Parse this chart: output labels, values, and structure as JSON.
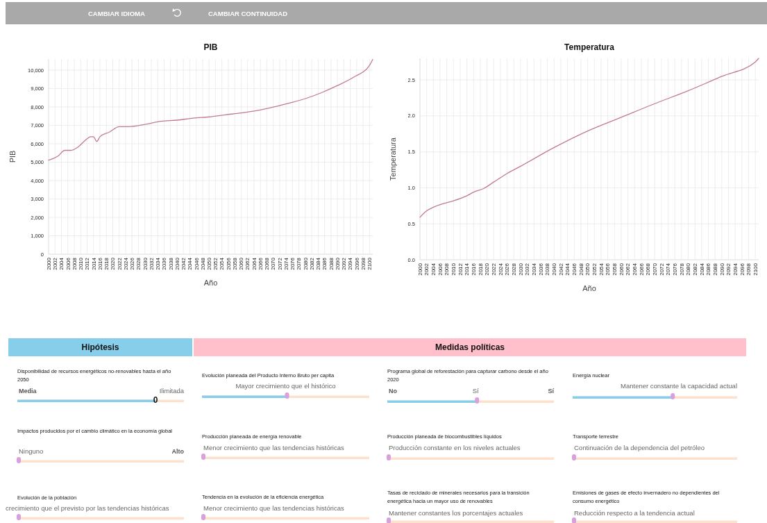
{
  "chart_data": [
    {
      "type": "other",
      "annotations": [
        "CAMBIAR IDIOMA",
        "CAMBIAR CONTINUIDAD"
      ]
    },
    {
      "type": "line",
      "title": "PIB",
      "xlabel": "Año",
      "ylabel": "PIB",
      "color": "#c27a93",
      "grid": true,
      "x": [
        2000,
        2003,
        2005,
        2007,
        2009,
        2012,
        2013,
        2014,
        2015,
        2016,
        2019,
        2022,
        2025,
        2030,
        2035,
        2040,
        2045,
        2050,
        2055,
        2060,
        2065,
        2070,
        2075,
        2080,
        2085,
        2090,
        2095,
        2100,
        2101
      ],
      "values": [
        5110,
        5340,
        5640,
        5640,
        5800,
        6270,
        6380,
        6380,
        6120,
        6380,
        6640,
        6930,
        6930,
        7050,
        7220,
        7280,
        7390,
        7460,
        7570,
        7670,
        7800,
        7990,
        8210,
        8450,
        8770,
        9160,
        9610,
        10260,
        10580
      ],
      "xlim": [
        2000,
        2101
      ],
      "xticks": [
        2000,
        2002,
        2004,
        2006,
        2008,
        2010,
        2012,
        2014,
        2016,
        2018,
        2020,
        2022,
        2024,
        2026,
        2028,
        2030,
        2032,
        2034,
        2036,
        2038,
        2040,
        2042,
        2044,
        2046,
        2048,
        2050,
        2052,
        2054,
        2056,
        2058,
        2060,
        2062,
        2064,
        2066,
        2068,
        2070,
        2072,
        2074,
        2076,
        2078,
        2080,
        2082,
        2084,
        2086,
        2088,
        2090,
        2092,
        2094,
        2096,
        2098,
        2100
      ],
      "ylim": [
        0,
        10600
      ],
      "yticks": [
        0,
        {
          "value": 1000,
          "label": "1,000"
        },
        {
          "value": 2000,
          "label": "2,000"
        },
        {
          "value": 3000,
          "label": "3,000"
        },
        {
          "value": 4000,
          "label": "4,000"
        },
        {
          "value": 5000,
          "label": "5,000"
        },
        {
          "value": 6000,
          "label": "6,000"
        },
        {
          "value": 7000,
          "label": "7,000"
        },
        {
          "value": 8000,
          "label": "8,000"
        },
        {
          "value": 9000,
          "label": "9,000"
        },
        {
          "value": 10000,
          "label": "10,000"
        }
      ]
    },
    {
      "type": "line",
      "title": "Temperatura",
      "xlabel": "Año",
      "ylabel": "Temperatura",
      "color": "#c27a93",
      "grid": true,
      "x": [
        2000,
        2002,
        2004,
        2007,
        2010,
        2014,
        2016,
        2019,
        2022,
        2026,
        2030,
        2040,
        2050,
        2060,
        2070,
        2080,
        2090,
        2100,
        2101
      ],
      "values": [
        0.59,
        0.68,
        0.73,
        0.78,
        0.82,
        0.89,
        0.94,
        0.99,
        1.08,
        1.2,
        1.3,
        1.56,
        1.79,
        1.98,
        2.17,
        2.35,
        2.55,
        2.75,
        2.8
      ],
      "xlim": [
        2000,
        2101
      ],
      "xticks": [
        2000,
        2002,
        2004,
        2006,
        2008,
        2010,
        2012,
        2014,
        2016,
        2018,
        2020,
        2022,
        2024,
        2026,
        2028,
        2030,
        2032,
        2034,
        2036,
        2038,
        2040,
        2042,
        2044,
        2046,
        2048,
        2050,
        2052,
        2054,
        2056,
        2058,
        2060,
        2062,
        2064,
        2066,
        2068,
        2070,
        2072,
        2074,
        2076,
        2078,
        2080,
        2082,
        2084,
        2086,
        2088,
        2090,
        2092,
        2094,
        2096,
        2098,
        2100
      ],
      "ylim": [
        0,
        2.8
      ],
      "yticks": [
        {
          "value": 0,
          "label": "0.0"
        },
        {
          "value": 0.5,
          "label": "0.5"
        },
        {
          "value": 1,
          "label": "1.0"
        },
        {
          "value": 1.5,
          "label": "1.5"
        },
        {
          "value": 2,
          "label": "2.0"
        },
        {
          "value": 2.5,
          "label": "2.5"
        }
      ]
    },
    {
      "type": "other",
      "title": "Hipótesis",
      "annotations": [
        "Disponibilidad de recursos energéticos no-renovables hasta el año 2050",
        "Media",
        "Ilimitada",
        "0",
        "Impactos producidos por el cambio climático en la economía global",
        "Ninguno",
        "Alto",
        "Evolución de la población",
        "crecimiento que el previsto por las tendencias históricas"
      ]
    },
    {
      "type": "other",
      "title": "Medidas políticas",
      "annotations": [
        "Evolución planeada del Producto Interno Bruto per capita",
        "Mayor crecimiento que el histórico",
        "Programa global de reforestación para capturar carbono desde el año 2020",
        "No",
        "Sí",
        "Sí",
        "Energía nuclear",
        "Mantener constante la capacidad actual",
        "Producción planeada de energía renovable",
        "Menor crecimiento que las tendencias históricas",
        "Producción planeada de biocombustibles líquidos",
        "Producción constante en los niveles actuales",
        "Transporte terrestre",
        "Continuación de la dependencia del petróleo",
        "Tendencia en la evolución de la eficiencia energética",
        "Menor crecimiento que las tendencias históricas",
        "Tasas de reciclado de minerales necesarios para la transición energética hacia un mayor uso de renovables",
        "Mantener constantes los porcentajes actuales",
        "Emisiones de gases de efecto invernadero no dependientes del consumo energético",
        "Reducción respecto a la tendencia actual"
      ]
    }
  ]
}
